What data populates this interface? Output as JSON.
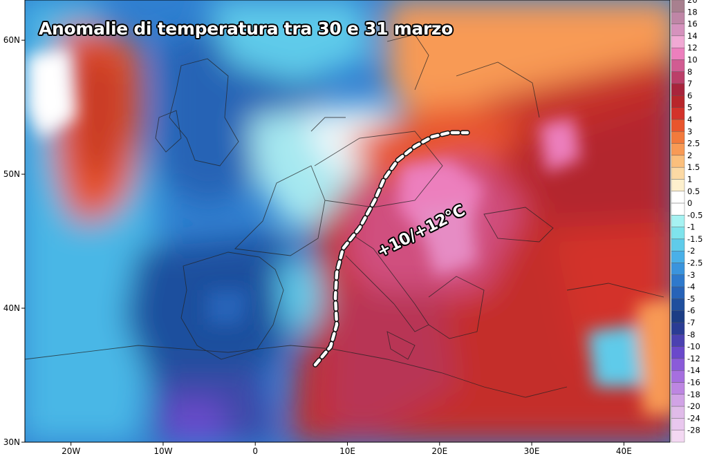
{
  "chart_data": {
    "type": "heatmap",
    "title": "Anomalie di temperatura tra 30 e 31 marzo",
    "annotation": "+10/+12°C",
    "units": "°C",
    "x_axis": {
      "range": [
        -25,
        45
      ],
      "ticks": [
        {
          "value": -20,
          "label": "20W"
        },
        {
          "value": -10,
          "label": "10W"
        },
        {
          "value": 0,
          "label": "0"
        },
        {
          "value": 10,
          "label": "10E"
        },
        {
          "value": 20,
          "label": "20E"
        },
        {
          "value": 30,
          "label": "30E"
        },
        {
          "value": 40,
          "label": "40E"
        }
      ]
    },
    "y_axis": {
      "range": [
        30,
        63
      ],
      "ticks": [
        {
          "value": 60,
          "label": "60N"
        },
        {
          "value": 50,
          "label": "50N"
        },
        {
          "value": 40,
          "label": "40N"
        },
        {
          "value": 30,
          "label": "30N"
        }
      ]
    },
    "colorbar": [
      {
        "label": "20",
        "color": "#a8808f"
      },
      {
        "label": "18",
        "color": "#bf86a6"
      },
      {
        "label": "16",
        "color": "#d592bd"
      },
      {
        "label": "14",
        "color": "#f0a9d4"
      },
      {
        "label": "12",
        "color": "#ec7fbd"
      },
      {
        "label": "10",
        "color": "#d15c92"
      },
      {
        "label": "8",
        "color": "#bb3f69"
      },
      {
        "label": "7",
        "color": "#a8243c"
      },
      {
        "label": "6",
        "color": "#b8262b"
      },
      {
        "label": "5",
        "color": "#d3322a"
      },
      {
        "label": "4",
        "color": "#e8552d"
      },
      {
        "label": "3",
        "color": "#f27a3c"
      },
      {
        "label": "2.5",
        "color": "#f89a55"
      },
      {
        "label": "2",
        "color": "#fbbf7c"
      },
      {
        "label": "1.5",
        "color": "#fcd9a4"
      },
      {
        "label": "1",
        "color": "#fdf0cd"
      },
      {
        "label": "0.5",
        "color": "#ffffff"
      },
      {
        "label": "0",
        "color": "#ffffff"
      },
      {
        "label": "-0.5",
        "color": "#a6f2f2"
      },
      {
        "label": "-1",
        "color": "#7fe3ec"
      },
      {
        "label": "-1.5",
        "color": "#5fcbea"
      },
      {
        "label": "-2",
        "color": "#49b0e8"
      },
      {
        "label": "-2.5",
        "color": "#3a94dd"
      },
      {
        "label": "-3",
        "color": "#2e79cc"
      },
      {
        "label": "-4",
        "color": "#2763b8"
      },
      {
        "label": "-5",
        "color": "#1f4f9e"
      },
      {
        "label": "-6",
        "color": "#1c3d85"
      },
      {
        "label": "-7",
        "color": "#2a3c94"
      },
      {
        "label": "-8",
        "color": "#4b41b1"
      },
      {
        "label": "-10",
        "color": "#6a49cb"
      },
      {
        "label": "-12",
        "color": "#8a5bd9"
      },
      {
        "label": "-14",
        "color": "#a66fdf"
      },
      {
        "label": "-16",
        "color": "#bd86e2"
      },
      {
        "label": "-18",
        "color": "#d1a3e6"
      },
      {
        "label": "-20",
        "color": "#e0bbe9"
      },
      {
        "label": "-24",
        "color": "#e9c7ee"
      },
      {
        "label": "-28",
        "color": "#f3d8f2"
      }
    ],
    "grid": false,
    "legend_placement": "right"
  }
}
